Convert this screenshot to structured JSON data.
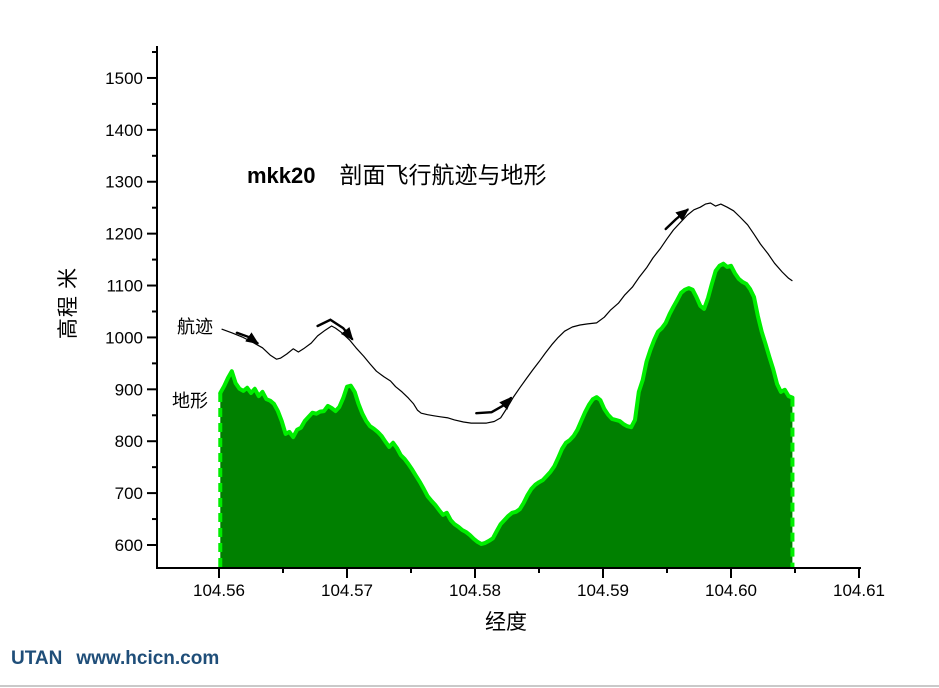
{
  "title": {
    "prefix": "mkk20",
    "text": "剖面飞行航迹与地形"
  },
  "labels": {
    "track": "航迹",
    "terrain": "地形"
  },
  "footer": {
    "brand": "UTAN",
    "site": "www.hcicn.com",
    "color": "#1f4e79"
  },
  "colors": {
    "terrain_fill": "#008000",
    "terrain_outline": "#00ee00",
    "track_line": "#000000",
    "axis": "#000000"
  },
  "chart_data": {
    "type": "area",
    "title": "mkk20 剖面飞行航迹与地形",
    "xlabel": "经度",
    "ylabel": "高程 米",
    "x_range": [
      104.5551,
      104.6102
    ],
    "y_range": [
      556,
      1548
    ],
    "grid": false,
    "legend_position": "inline-labels",
    "x_major_ticks": [
      104.56,
      104.57,
      104.58,
      104.59,
      104.6,
      104.61
    ],
    "x_minor_ticks": [
      104.565,
      104.575,
      104.585,
      104.595,
      104.605
    ],
    "y_major_ticks": [
      600,
      700,
      800,
      900,
      1000,
      1100,
      1200,
      1300,
      1400,
      1500
    ],
    "y_minor_ticks": [
      650,
      750,
      850,
      950,
      1050,
      1150,
      1250,
      1350,
      1450,
      1550
    ],
    "series": [
      {
        "name": "航迹",
        "type": "line",
        "color": "#000000",
        "points": [
          [
            104.5602,
            1016
          ],
          [
            104.561,
            1009
          ],
          [
            104.5618,
            1001
          ],
          [
            104.5626,
            991
          ],
          [
            104.5634,
            980
          ],
          [
            104.564,
            966
          ],
          [
            104.5645,
            958
          ],
          [
            104.5648,
            960
          ],
          [
            104.5653,
            968
          ],
          [
            104.5658,
            978
          ],
          [
            104.5662,
            972
          ],
          [
            104.5666,
            978
          ],
          [
            104.5672,
            989
          ],
          [
            104.5677,
            1003
          ],
          [
            104.5683,
            1014
          ],
          [
            104.5688,
            1022
          ],
          [
            104.5691,
            1018
          ],
          [
            104.5696,
            1009
          ],
          [
            104.5702,
            995
          ],
          [
            104.5707,
            980
          ],
          [
            104.5713,
            964
          ],
          [
            104.5718,
            949
          ],
          [
            104.5723,
            935
          ],
          [
            104.5729,
            924
          ],
          [
            104.5734,
            916
          ],
          [
            104.5738,
            905
          ],
          [
            104.5743,
            895
          ],
          [
            104.5748,
            883
          ],
          [
            104.5752,
            872
          ],
          [
            104.5755,
            860
          ],
          [
            104.5758,
            854
          ],
          [
            104.5763,
            851
          ],
          [
            104.5768,
            849
          ],
          [
            104.5773,
            847
          ],
          [
            104.5779,
            845
          ],
          [
            104.5784,
            841
          ],
          [
            104.5791,
            837
          ],
          [
            104.5797,
            835
          ],
          [
            104.5803,
            835
          ],
          [
            104.5809,
            835
          ],
          [
            104.5815,
            838
          ],
          [
            104.582,
            845
          ],
          [
            104.5825,
            864
          ],
          [
            104.583,
            885
          ],
          [
            104.5835,
            903
          ],
          [
            104.584,
            920
          ],
          [
            104.5845,
            937
          ],
          [
            104.585,
            953
          ],
          [
            104.5855,
            970
          ],
          [
            104.586,
            986
          ],
          [
            104.5865,
            1000
          ],
          [
            104.587,
            1012
          ],
          [
            104.5876,
            1020
          ],
          [
            104.5882,
            1024
          ],
          [
            104.5888,
            1026
          ],
          [
            104.5895,
            1028
          ],
          [
            104.5901,
            1039
          ],
          [
            104.5906,
            1053
          ],
          [
            104.5912,
            1066
          ],
          [
            104.5917,
            1082
          ],
          [
            104.5923,
            1097
          ],
          [
            104.5928,
            1115
          ],
          [
            104.5934,
            1134
          ],
          [
            104.5939,
            1153
          ],
          [
            104.5945,
            1172
          ],
          [
            104.595,
            1190
          ],
          [
            104.5955,
            1207
          ],
          [
            104.5961,
            1223
          ],
          [
            104.5966,
            1236
          ],
          [
            104.5971,
            1246
          ],
          [
            104.5976,
            1251
          ],
          [
            104.598,
            1257
          ],
          [
            104.5984,
            1259
          ],
          [
            104.5988,
            1253
          ],
          [
            104.5992,
            1257
          ],
          [
            104.5997,
            1251
          ],
          [
            104.6002,
            1244
          ],
          [
            104.6007,
            1232
          ],
          [
            104.6013,
            1217
          ],
          [
            104.6018,
            1199
          ],
          [
            104.6023,
            1180
          ],
          [
            104.6029,
            1161
          ],
          [
            104.6034,
            1143
          ],
          [
            104.604,
            1126
          ],
          [
            104.6045,
            1114
          ],
          [
            104.6048,
            1109
          ]
        ]
      },
      {
        "name": "地形",
        "type": "area",
        "fill_color": "#008000",
        "outline_color": "#00ee00",
        "lon_start": 104.5601,
        "lon_step": 0.0003,
        "elevations": [
          893,
          906,
          922,
          935,
          912,
          901,
          897,
          903,
          893,
          901,
          887,
          895,
          881,
          878,
          872,
          858,
          839,
          814,
          818,
          808,
          822,
          826,
          839,
          847,
          855,
          853,
          857,
          858,
          868,
          864,
          858,
          866,
          883,
          905,
          907,
          895,
          872,
          853,
          839,
          829,
          824,
          818,
          810,
          799,
          789,
          797,
          787,
          773,
          766,
          756,
          745,
          733,
          721,
          708,
          694,
          685,
          677,
          667,
          658,
          662,
          648,
          640,
          635,
          629,
          625,
          619,
          612,
          606,
          602,
          604,
          608,
          613,
          627,
          640,
          648,
          656,
          662,
          664,
          669,
          681,
          696,
          708,
          716,
          721,
          725,
          733,
          741,
          752,
          768,
          785,
          797,
          802,
          810,
          822,
          839,
          856,
          870,
          881,
          885,
          879,
          862,
          851,
          843,
          841,
          839,
          833,
          829,
          827,
          841,
          895,
          918,
          953,
          976,
          995,
          1011,
          1018,
          1028,
          1045,
          1059,
          1072,
          1086,
          1092,
          1095,
          1092,
          1078,
          1061,
          1055,
          1076,
          1103,
          1128,
          1138,
          1142,
          1136,
          1138,
          1124,
          1113,
          1107,
          1103,
          1093,
          1078,
          1041,
          1011,
          987,
          962,
          939,
          910,
          895,
          899,
          887,
          884
        ]
      }
    ],
    "arrows": [
      {
        "points": [
          [
            104.5614,
            1009
          ],
          [
            104.5623,
            1001
          ],
          [
            104.563,
            989
          ]
        ]
      },
      {
        "points": [
          [
            104.5677,
            1022
          ],
          [
            104.5687,
            1034
          ],
          [
            104.5697,
            1018
          ],
          [
            104.5704,
            997
          ]
        ]
      },
      {
        "points": [
          [
            104.5801,
            854
          ],
          [
            104.5813,
            856
          ],
          [
            104.5823,
            870
          ],
          [
            104.5828,
            883
          ]
        ]
      },
      {
        "points": [
          [
            104.5949,
            1209
          ],
          [
            104.5957,
            1228
          ],
          [
            104.5966,
            1246
          ]
        ]
      }
    ]
  }
}
